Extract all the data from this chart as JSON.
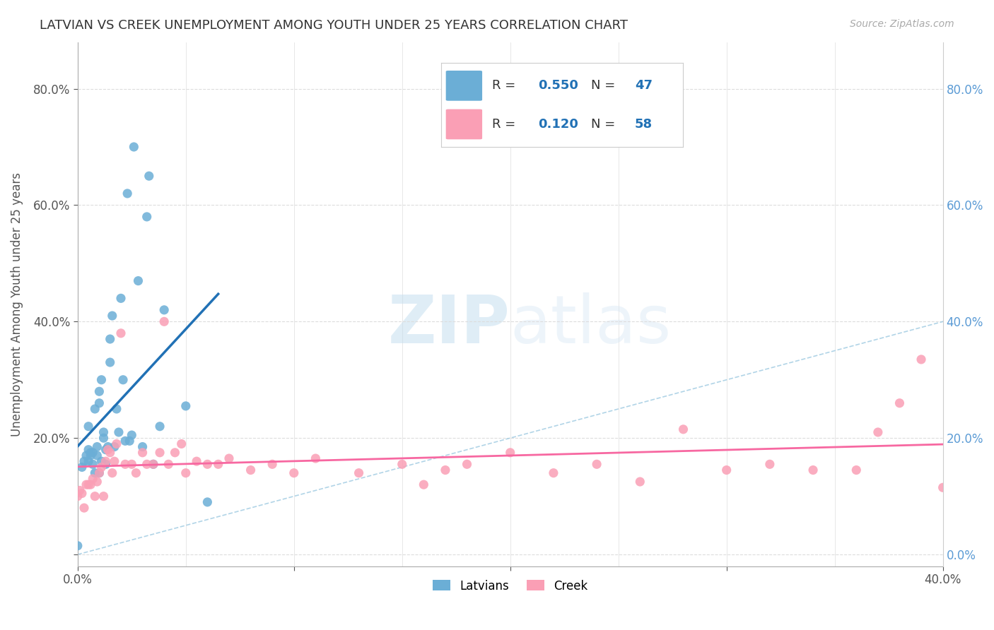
{
  "title": "LATVIAN VS CREEK UNEMPLOYMENT AMONG YOUTH UNDER 25 YEARS CORRELATION CHART",
  "source": "Source: ZipAtlas.com",
  "ylabel": "Unemployment Among Youth under 25 years",
  "xlim": [
    0.0,
    0.4
  ],
  "ylim": [
    -0.02,
    0.88
  ],
  "yticks": [
    0.0,
    0.2,
    0.4,
    0.6,
    0.8
  ],
  "xticks": [
    0.0,
    0.1,
    0.2,
    0.3,
    0.4
  ],
  "xtick_labels": [
    "0.0%",
    "",
    "",
    "",
    "40.0%"
  ],
  "ytick_labels_left": [
    "",
    "20.0%",
    "40.0%",
    "60.0%",
    "80.0%"
  ],
  "ytick_labels_right": [
    "0.0%",
    "20.0%",
    "40.0%",
    "60.0%",
    "80.0%"
  ],
  "latvian_color": "#6baed6",
  "creek_color": "#fa9fb5",
  "latvian_line_color": "#2171b5",
  "creek_line_color": "#f768a1",
  "diag_line_color": "#9ecae1",
  "legend_latvian_label": "Latvians",
  "legend_creek_label": "Creek",
  "R_latvian": 0.55,
  "N_latvian": 47,
  "R_creek": 0.12,
  "N_creek": 58,
  "watermark_zip": "ZIP",
  "watermark_atlas": "atlas",
  "latvian_x": [
    0.0,
    0.002,
    0.003,
    0.004,
    0.005,
    0.005,
    0.005,
    0.006,
    0.006,
    0.007,
    0.007,
    0.008,
    0.008,
    0.009,
    0.009,
    0.01,
    0.01,
    0.01,
    0.011,
    0.011,
    0.012,
    0.012,
    0.013,
    0.013,
    0.014,
    0.015,
    0.015,
    0.016,
    0.017,
    0.018,
    0.019,
    0.02,
    0.021,
    0.022,
    0.023,
    0.024,
    0.025,
    0.026,
    0.028,
    0.03,
    0.032,
    0.033,
    0.035,
    0.038,
    0.04,
    0.05,
    0.06
  ],
  "latvian_y": [
    0.015,
    0.15,
    0.16,
    0.17,
    0.16,
    0.18,
    0.22,
    0.17,
    0.175,
    0.155,
    0.175,
    0.14,
    0.25,
    0.17,
    0.185,
    0.14,
    0.26,
    0.28,
    0.16,
    0.3,
    0.2,
    0.21,
    0.155,
    0.18,
    0.185,
    0.33,
    0.37,
    0.41,
    0.185,
    0.25,
    0.21,
    0.44,
    0.3,
    0.195,
    0.62,
    0.195,
    0.205,
    0.7,
    0.47,
    0.185,
    0.58,
    0.65,
    0.155,
    0.22,
    0.42,
    0.255,
    0.09
  ],
  "creek_x": [
    0.0,
    0.001,
    0.002,
    0.003,
    0.004,
    0.005,
    0.006,
    0.007,
    0.008,
    0.009,
    0.01,
    0.011,
    0.012,
    0.013,
    0.014,
    0.015,
    0.016,
    0.017,
    0.018,
    0.02,
    0.022,
    0.025,
    0.027,
    0.03,
    0.032,
    0.035,
    0.038,
    0.04,
    0.042,
    0.045,
    0.048,
    0.05,
    0.055,
    0.06,
    0.065,
    0.07,
    0.08,
    0.09,
    0.1,
    0.11,
    0.13,
    0.15,
    0.16,
    0.17,
    0.18,
    0.2,
    0.22,
    0.24,
    0.26,
    0.28,
    0.3,
    0.32,
    0.34,
    0.36,
    0.37,
    0.38,
    0.39,
    0.4
  ],
  "creek_y": [
    0.1,
    0.11,
    0.105,
    0.08,
    0.12,
    0.12,
    0.12,
    0.13,
    0.1,
    0.125,
    0.14,
    0.15,
    0.1,
    0.16,
    0.18,
    0.175,
    0.14,
    0.16,
    0.19,
    0.38,
    0.155,
    0.155,
    0.14,
    0.175,
    0.155,
    0.155,
    0.175,
    0.4,
    0.155,
    0.175,
    0.19,
    0.14,
    0.16,
    0.155,
    0.155,
    0.165,
    0.145,
    0.155,
    0.14,
    0.165,
    0.14,
    0.155,
    0.12,
    0.145,
    0.155,
    0.175,
    0.14,
    0.155,
    0.125,
    0.215,
    0.145,
    0.155,
    0.145,
    0.145,
    0.21,
    0.26,
    0.335,
    0.115
  ]
}
